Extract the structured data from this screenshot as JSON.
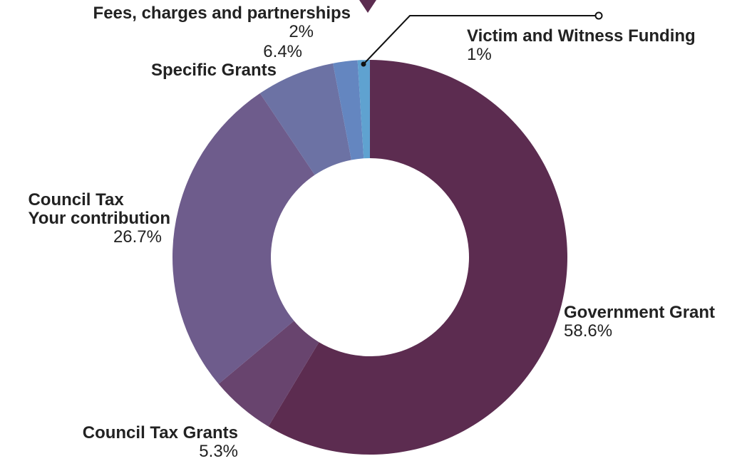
{
  "chart_data": {
    "type": "pie",
    "donut": true,
    "start_position": "top",
    "direction": "clockwise",
    "slices": [
      {
        "label": "Government Grant",
        "value": 58.6,
        "value_label": "58.6%",
        "color": "#5c2c50"
      },
      {
        "label": "Council Tax Grants",
        "value": 5.3,
        "value_label": "5.3%",
        "color": "#68446e"
      },
      {
        "label": "Council Tax\nYour contribution",
        "label_lines": [
          "Council Tax",
          "Your contribution"
        ],
        "value": 26.7,
        "value_label": "26.7%",
        "color": "#6e5c8c"
      },
      {
        "label": "Specific Grants",
        "value": 6.4,
        "value_label": "6.4%",
        "color": "#6c72a4"
      },
      {
        "label": "Fees, charges and partnerships",
        "value": 2,
        "value_label": "2%",
        "color": "#6486c0"
      },
      {
        "label": "Victim and Witness Funding",
        "value": 1,
        "value_label": "1%",
        "color": "#5fa2d0"
      }
    ],
    "leader_color": "#111111",
    "decoration_color": "#5c2c50"
  }
}
